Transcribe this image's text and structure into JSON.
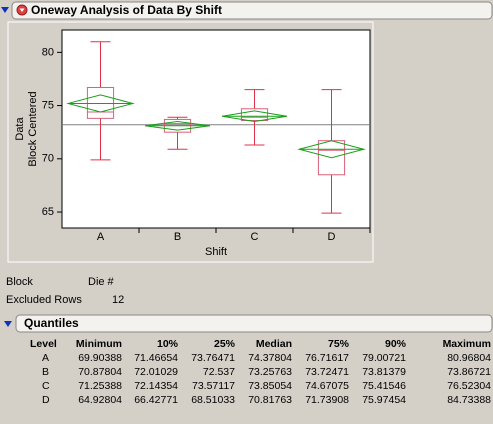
{
  "header": {
    "title": "Oneway Analysis of Data By Shift"
  },
  "chart_data": {
    "type": "box",
    "ylabel": "Data",
    "ylabel2": "Block Centered",
    "xlabel": "Shift",
    "categories": [
      "A",
      "B",
      "C",
      "D"
    ],
    "whisker_low": [
      69.9,
      70.9,
      71.3,
      64.9
    ],
    "q1": [
      73.8,
      72.5,
      73.6,
      68.5
    ],
    "median": [
      74.4,
      73.3,
      73.9,
      70.8
    ],
    "q3": [
      76.7,
      73.7,
      74.7,
      71.7
    ],
    "whisker_high": [
      81.0,
      73.9,
      76.5,
      76.5
    ],
    "means": [
      75.2,
      73.1,
      74.0,
      70.9
    ],
    "mean_ci": [
      0.8,
      0.4,
      0.5,
      0.8
    ],
    "grand_mean": 73.2,
    "box_color": "#d8607a",
    "whisker_color": "#e0304a",
    "diamond_color": "#18a018",
    "ylim": [
      63.5,
      82.1
    ],
    "yticks": [
      65,
      70,
      75,
      80
    ]
  },
  "info": {
    "block_label": "Block",
    "block_value": "Die #",
    "excluded_label": "Excluded Rows",
    "excluded_value": "12"
  },
  "quantiles": {
    "title": "Quantiles",
    "columns": [
      "Level",
      "Minimum",
      "10%",
      "25%",
      "Median",
      "75%",
      "90%",
      "Maximum"
    ],
    "rows": [
      [
        "A",
        "69.90388",
        "71.46654",
        "73.76471",
        "74.37804",
        "76.71617",
        "79.00721",
        "80.96804"
      ],
      [
        "B",
        "70.87804",
        "72.01029",
        "72.537",
        "73.25763",
        "73.72471",
        "73.81379",
        "73.86721"
      ],
      [
        "C",
        "71.25388",
        "72.14354",
        "73.57117",
        "73.85054",
        "74.67075",
        "75.41546",
        "76.52304"
      ],
      [
        "D",
        "64.92804",
        "66.42771",
        "68.51033",
        "70.81763",
        "71.73908",
        "75.97454",
        "84.73388"
      ]
    ]
  }
}
